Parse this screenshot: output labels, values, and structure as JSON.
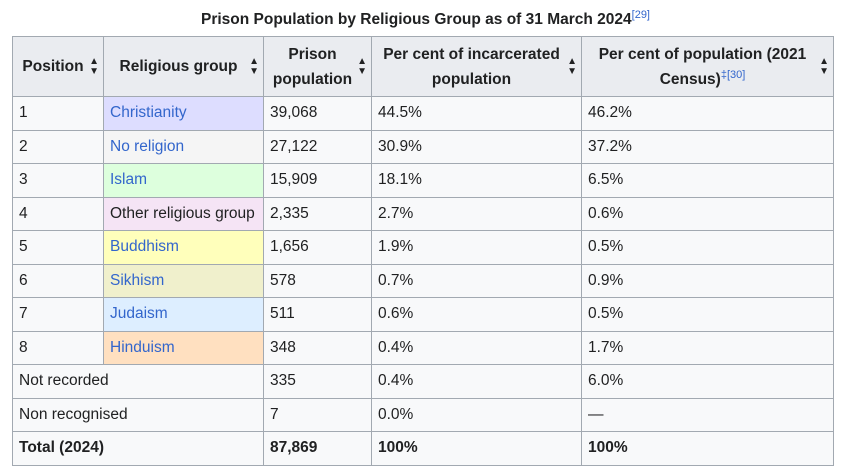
{
  "caption": {
    "text": "Prison Population by Religious Group as of 31 March 2024",
    "ref": "[29]"
  },
  "headers": [
    {
      "label": "Position",
      "ref": ""
    },
    {
      "label": "Religious group",
      "ref": ""
    },
    {
      "label": "Prison population",
      "ref": ""
    },
    {
      "label": "Per cent of incarcerated population",
      "ref": ""
    },
    {
      "label": "Per cent of population (2021 Census)",
      "ref": "‡[30]"
    }
  ],
  "sort_icon": "sort-arrows-icon",
  "rows": [
    {
      "position": "1",
      "group": "Christianity",
      "population": "39,068",
      "pct_prison": "44.5%",
      "pct_census": "46.2%",
      "color": "#ddddff",
      "link": true
    },
    {
      "position": "2",
      "group": "No religion",
      "population": "27,122",
      "pct_prison": "30.9%",
      "pct_census": "37.2%",
      "color": "#f5f5f5",
      "link": true
    },
    {
      "position": "3",
      "group": "Islam",
      "population": "15,909",
      "pct_prison": "18.1%",
      "pct_census": "6.5%",
      "color": "#ddffdd",
      "link": true
    },
    {
      "position": "4",
      "group": "Other religious group",
      "population": "2,335",
      "pct_prison": "2.7%",
      "pct_census": "0.6%",
      "color": "#f5e4f5",
      "link": false
    },
    {
      "position": "5",
      "group": "Buddhism",
      "population": "1,656",
      "pct_prison": "1.9%",
      "pct_census": "0.5%",
      "color": "#ffffbb",
      "link": true
    },
    {
      "position": "6",
      "group": "Sikhism",
      "population": "578",
      "pct_prison": "0.7%",
      "pct_census": "0.9%",
      "color": "#f0f0cc",
      "link": true
    },
    {
      "position": "7",
      "group": "Judaism",
      "population": "511",
      "pct_prison": "0.6%",
      "pct_census": "0.5%",
      "color": "#ddeeff",
      "link": true
    },
    {
      "position": "8",
      "group": "Hinduism",
      "population": "348",
      "pct_prison": "0.4%",
      "pct_census": "1.7%",
      "color": "#ffe0c0",
      "link": true
    }
  ],
  "extra_rows": [
    {
      "label": "Not recorded",
      "population": "335",
      "pct_prison": "0.4%",
      "pct_census": "6.0%"
    },
    {
      "label": "Non recognised",
      "population": "7",
      "pct_prison": "0.0%",
      "pct_census": "—"
    }
  ],
  "total": {
    "label": "Total (2024)",
    "population": "87,869",
    "pct_prison": "100%",
    "pct_census": "100%"
  }
}
